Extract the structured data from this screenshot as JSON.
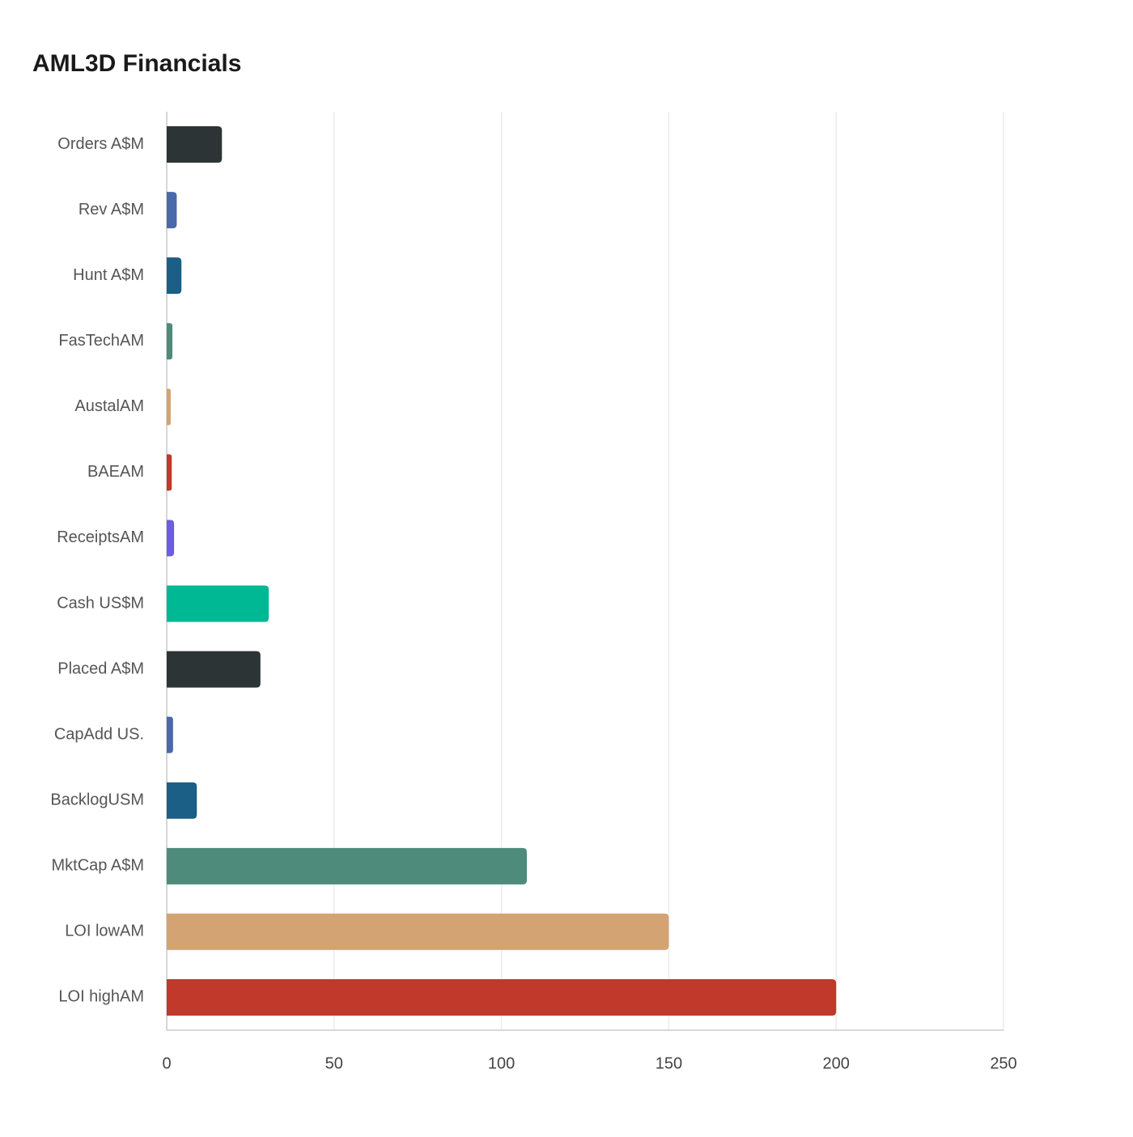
{
  "chart_data": {
    "type": "hbar",
    "title": "AML3D Financials",
    "categories": [
      "Orders A$M",
      "Rev A$M",
      "Hunt A$M",
      "FasTechAM",
      "AustalAM",
      "BAEAM",
      "ReceiptsAM",
      "Cash US$M",
      "Placed A$M",
      "CapAdd US.",
      "BacklogUSM",
      "MktCap A$M",
      "LOI lowAM",
      "LOI highAM"
    ],
    "values": [
      16.5,
      3,
      4.4,
      1.7,
      1.2,
      1.5,
      2.2,
      30.5,
      28,
      1.9,
      9,
      107.6,
      150,
      200
    ],
    "colors": [
      "#2d3436",
      "#4a69a8",
      "#1b5e86",
      "#4e8b7b",
      "#d4a373",
      "#c0392b",
      "#6c5ce7",
      "#00b894",
      "#2d3436",
      "#4a69a8",
      "#1b5e86",
      "#4e8b7b",
      "#d4a373",
      "#c0392b"
    ],
    "xlim": [
      0,
      250
    ],
    "xticks": [
      0,
      50,
      100,
      150,
      200,
      250
    ],
    "grid": true
  }
}
